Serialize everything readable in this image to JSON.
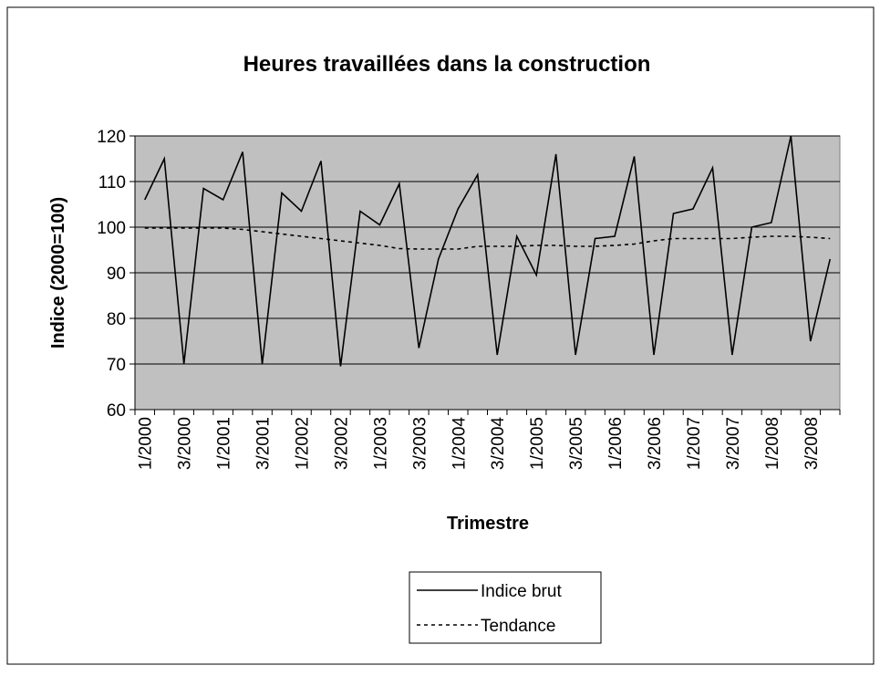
{
  "chart_data": {
    "type": "line",
    "title": "Heures travaillées dans la construction",
    "xlabel": "Trimestre",
    "ylabel": "Indice (2000=100)",
    "categories": [
      "1/2000",
      null,
      "3/2000",
      null,
      "1/2001",
      null,
      "3/2001",
      null,
      "1/2002",
      null,
      "3/2002",
      null,
      "1/2003",
      null,
      "3/2003",
      null,
      "1/2004",
      null,
      "3/2004",
      null,
      "1/2005",
      null,
      "3/2005",
      null,
      "1/2006",
      null,
      "3/2006",
      null,
      "1/2007",
      null,
      "3/2007",
      null,
      "1/2008",
      null,
      "3/2008",
      null
    ],
    "series": [
      {
        "name": "Indice brut",
        "color": "#000000",
        "dash": "solid",
        "values": [
          106,
          115,
          70,
          108.5,
          106,
          116.5,
          70,
          107.5,
          103.5,
          114.5,
          69.5,
          103.5,
          100.5,
          109.5,
          73.5,
          93,
          104,
          111.5,
          72,
          98,
          89.5,
          116,
          72,
          97.5,
          98,
          115.5,
          72,
          103,
          104,
          113,
          72,
          100,
          101,
          120,
          75,
          93
        ]
      },
      {
        "name": "Tendance",
        "color": "#000000",
        "dash": "dashed",
        "values": [
          99.8,
          99.8,
          99.8,
          99.8,
          99.8,
          99.5,
          99,
          98.5,
          98,
          97.5,
          97,
          96.5,
          96,
          95.3,
          95.2,
          95.2,
          95.2,
          95.8,
          95.8,
          95.8,
          96,
          96,
          95.8,
          95.8,
          96,
          96.3,
          97,
          97.5,
          97.5,
          97.5,
          97.5,
          97.8,
          98,
          98,
          97.8,
          97.5
        ]
      }
    ],
    "ylim": [
      60,
      120
    ],
    "yticks": [
      60,
      70,
      80,
      90,
      100,
      110,
      120
    ],
    "grid": true,
    "plot_background": "#c0c0c0",
    "legend": "bottom"
  }
}
